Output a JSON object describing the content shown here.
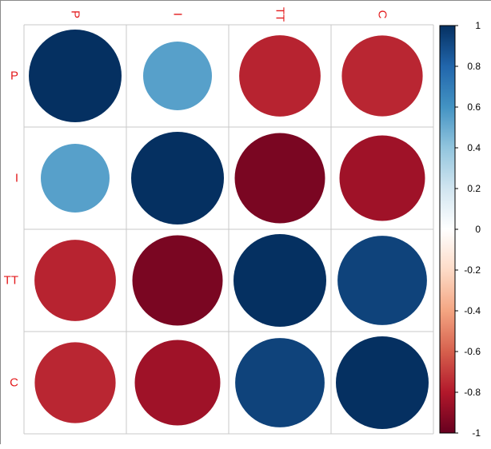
{
  "chart_data": {
    "type": "heatmap",
    "style": "correlation-circles",
    "variables": [
      "P",
      "I",
      "TT",
      "C"
    ],
    "matrix": [
      [
        1.0,
        0.55,
        -0.77,
        -0.76
      ],
      [
        0.55,
        1.0,
        -0.95,
        -0.85
      ],
      [
        -0.77,
        -0.95,
        1.0,
        0.93
      ],
      [
        -0.76,
        -0.85,
        0.93,
        1.0
      ]
    ],
    "colorbar": {
      "ticks": [
        "1",
        "0.8",
        "0.6",
        "0.4",
        "0.2",
        "0",
        "-0.2",
        "-0.4",
        "-0.6",
        "-0.8",
        "-1"
      ],
      "range": [
        -1,
        1
      ]
    },
    "colors": {
      "label": "#e31a1c",
      "grid": "#c8c8c8",
      "scale": [
        "#67001f",
        "#b2182b",
        "#d6604d",
        "#f4a582",
        "#fddbc7",
        "#ffffff",
        "#d1e5f0",
        "#92c5de",
        "#4393c3",
        "#2166ac",
        "#053061"
      ]
    }
  }
}
